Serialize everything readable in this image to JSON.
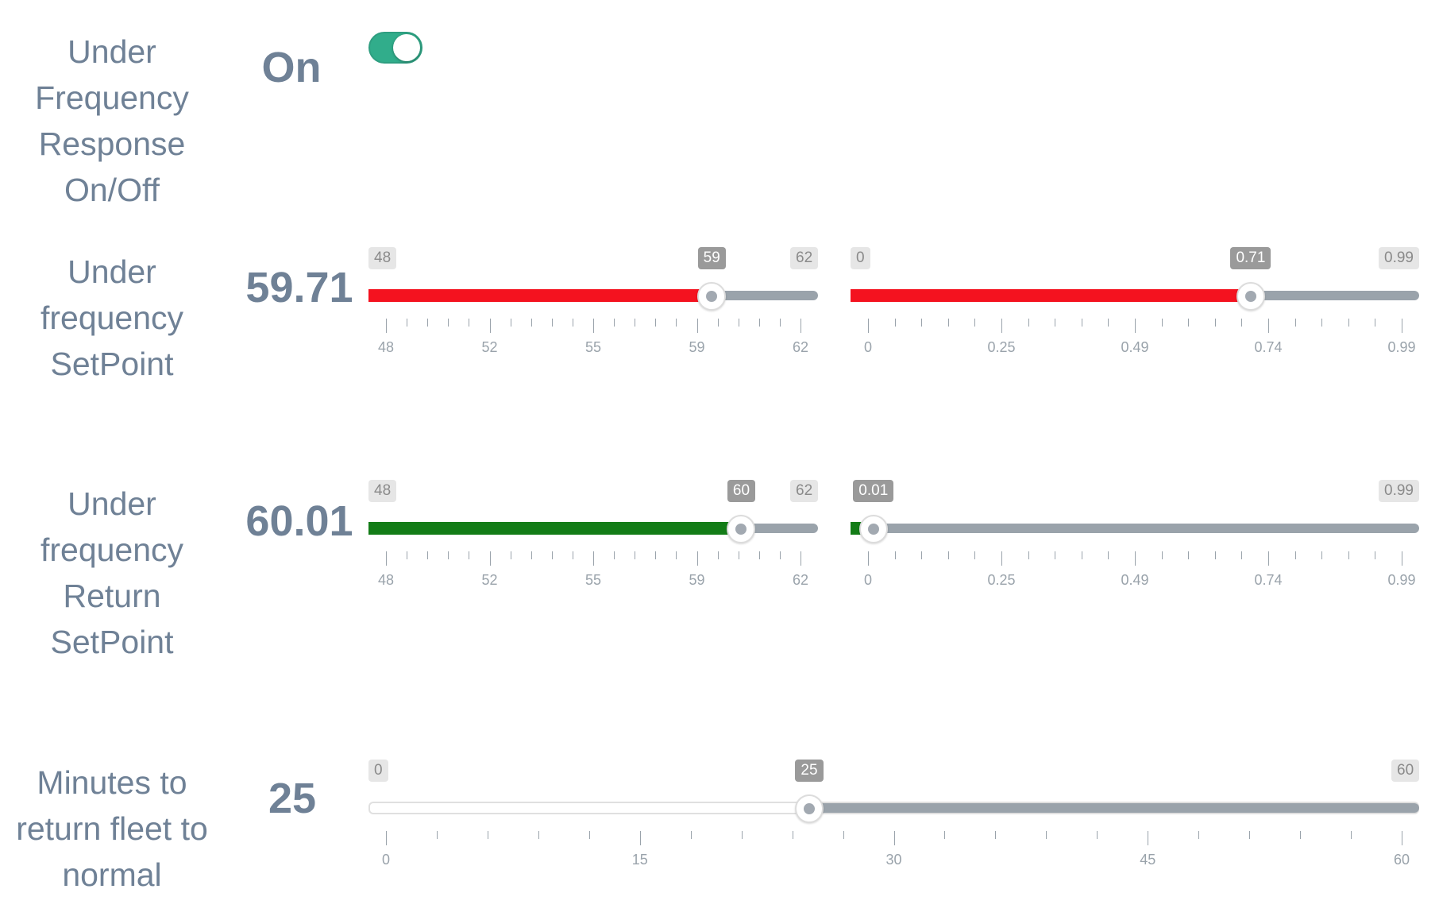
{
  "rows": [
    {
      "id": "response",
      "label_lines": [
        "Under",
        "Frequency",
        "Response",
        "On/Off"
      ],
      "value": "On",
      "toggle": {
        "state": "on",
        "color": "#31ad8b"
      }
    },
    {
      "id": "setpoint",
      "label_lines": [
        "Under",
        "frequency",
        "SetPoint"
      ],
      "value": "59.71",
      "sliders": [
        {
          "min_label": "48",
          "cur_label": "59",
          "max_label": "62",
          "min": 48,
          "max": 62,
          "value": 59,
          "fill_color": "#f4121f",
          "ticks": [
            "48",
            "52",
            "55",
            "59",
            "62"
          ]
        },
        {
          "min_label": "0",
          "cur_label": "0.71",
          "max_label": "0.99",
          "min": 0,
          "max": 0.99,
          "value": 0.71,
          "fill_color": "#f4121f",
          "ticks": [
            "0",
            "0.25",
            "0.49",
            "0.74",
            "0.99"
          ]
        }
      ]
    },
    {
      "id": "return",
      "label_lines": [
        "Under",
        "frequency",
        "Return",
        "SetPoint"
      ],
      "value": "60.01",
      "sliders": [
        {
          "min_label": "48",
          "cur_label": "60",
          "max_label": "62",
          "min": 48,
          "max": 62,
          "value": 60,
          "fill_color": "#137c17",
          "ticks": [
            "48",
            "52",
            "55",
            "59",
            "62"
          ]
        },
        {
          "min_label": "",
          "cur_label": "0.01",
          "max_label": "0.99",
          "min": 0,
          "max": 0.99,
          "value": 0.01,
          "fill_color": "#137c17",
          "ticks": [
            "0",
            "0.25",
            "0.49",
            "0.74",
            "0.99"
          ]
        }
      ]
    },
    {
      "id": "minutes",
      "label_lines": [
        "Minutes to",
        "return fleet to",
        "normal"
      ],
      "value": "25",
      "sliders": [
        {
          "min_label": "0",
          "cur_label": "25",
          "max_label": "60",
          "min": 0,
          "max": 60,
          "value": 25,
          "fill_color": "#ffffff",
          "ticks": [
            "0",
            "15",
            "30",
            "45",
            "60"
          ]
        }
      ]
    }
  ]
}
